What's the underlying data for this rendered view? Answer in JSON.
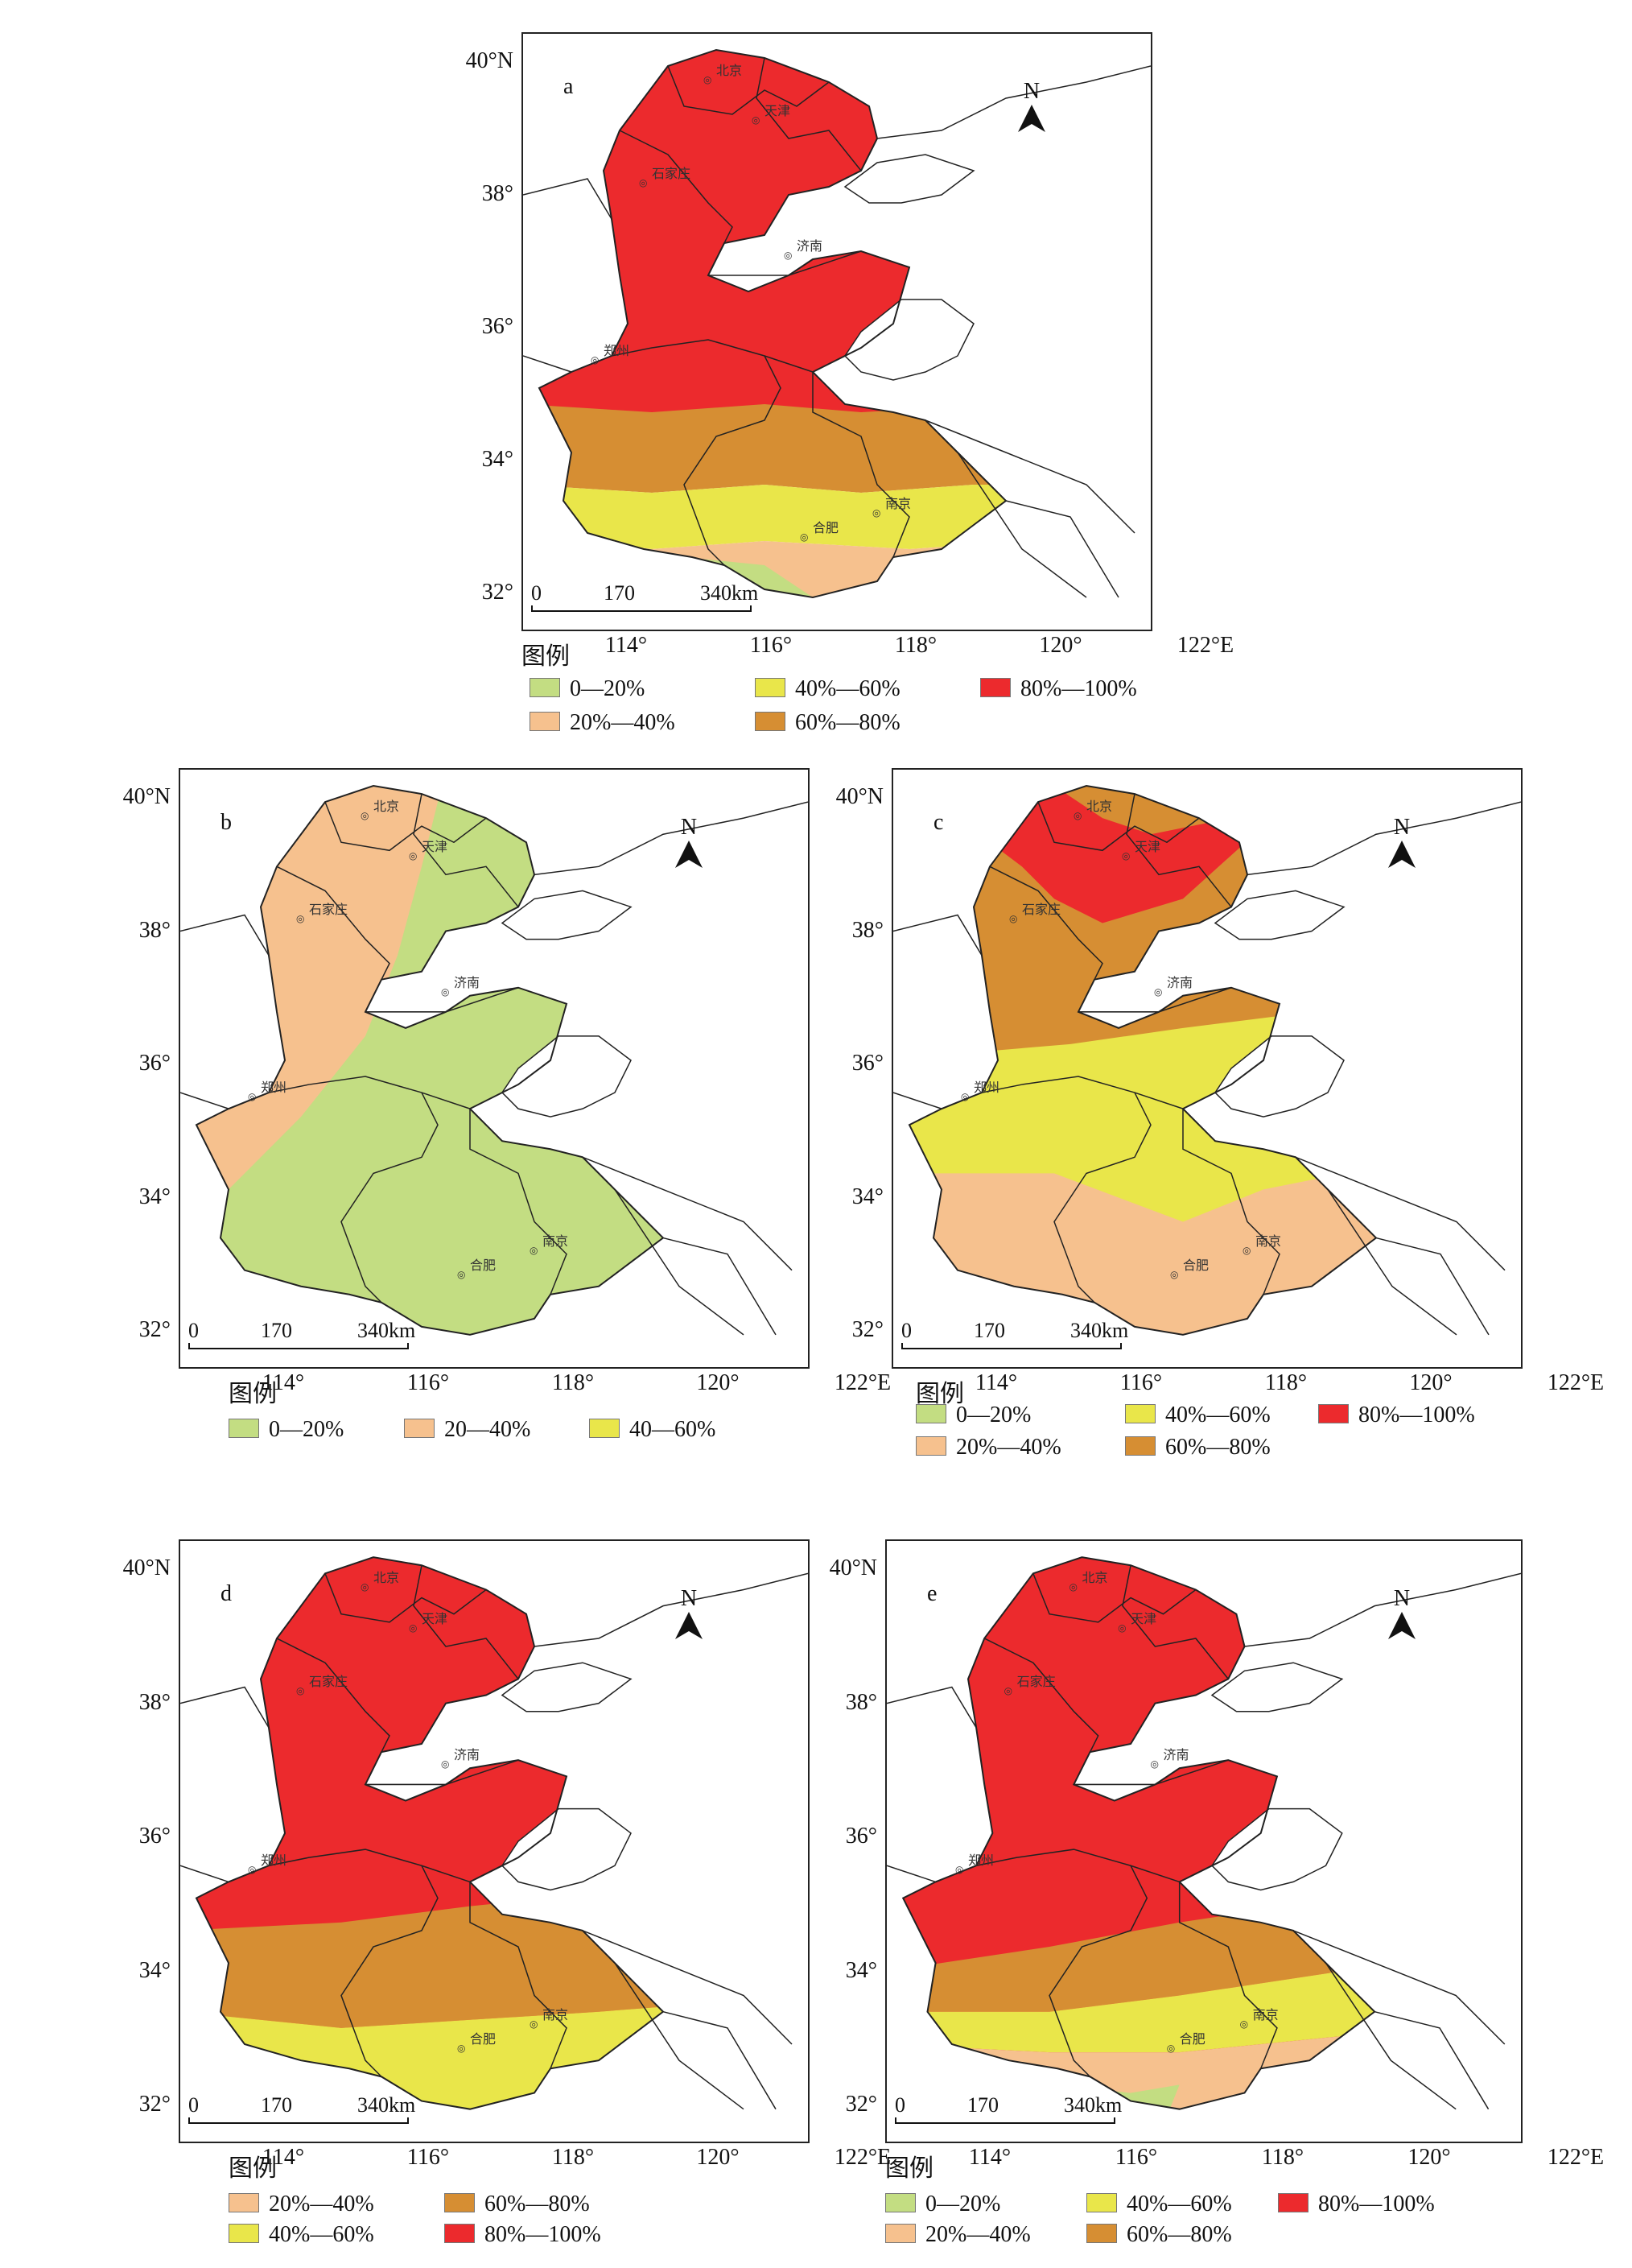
{
  "colors": {
    "0-20": "#c3dd82",
    "20-40": "#f6c18e",
    "40-60": "#e9e64a",
    "60-80": "#d68e33",
    "80-100": "#ec2a2d",
    "border": "#222222"
  },
  "axes": {
    "lat_labels": [
      "40°N",
      "38°",
      "36°",
      "34°",
      "32°"
    ],
    "lon_labels": [
      "114°",
      "116°",
      "118°",
      "120°",
      "122°E"
    ]
  },
  "north_label": "N",
  "scale": {
    "zero": "0",
    "mid": "170",
    "end": "340km"
  },
  "cities": {
    "beijing": "北京",
    "tianjin": "天津",
    "shijiazhuang": "石家庄",
    "jinan": "济南",
    "zhengzhou": "郑州",
    "hefei": "合肥",
    "nanjing": "南京"
  },
  "legend_title": "图例",
  "panels": {
    "a": {
      "letter": "a",
      "legend": [
        {
          "key": "0-20",
          "label": "0—20%"
        },
        {
          "key": "40-60",
          "label": "40%—60%"
        },
        {
          "key": "80-100",
          "label": "80%—100%"
        },
        {
          "key": "20-40",
          "label": "20%—40%"
        },
        {
          "key": "60-80",
          "label": "60%—80%"
        }
      ]
    },
    "b": {
      "letter": "b",
      "legend": [
        {
          "key": "0-20",
          "label": "0—20%"
        },
        {
          "key": "20-40",
          "label": "20—40%"
        },
        {
          "key": "40-60",
          "label": "40—60%"
        }
      ]
    },
    "c": {
      "letter": "c",
      "legend": [
        {
          "key": "0-20",
          "label": "0—20%"
        },
        {
          "key": "40-60",
          "label": "40%—60%"
        },
        {
          "key": "80-100",
          "label": "80%—100%"
        },
        {
          "key": "20-40",
          "label": "20%—40%"
        },
        {
          "key": "60-80",
          "label": "60%—80%"
        }
      ]
    },
    "d": {
      "letter": "d",
      "legend": [
        {
          "key": "20-40",
          "label": "20%—40%"
        },
        {
          "key": "60-80",
          "label": "60%—80%"
        },
        {
          "key": "40-60",
          "label": "40%—60%"
        },
        {
          "key": "80-100",
          "label": "80%—100%"
        }
      ]
    },
    "e": {
      "letter": "e",
      "legend": [
        {
          "key": "0-20",
          "label": "0—20%"
        },
        {
          "key": "40-60",
          "label": "40%—60%"
        },
        {
          "key": "80-100",
          "label": "80%—100%"
        },
        {
          "key": "20-40",
          "label": "20%—40%"
        },
        {
          "key": "60-80",
          "label": "60%—80%"
        }
      ]
    }
  }
}
